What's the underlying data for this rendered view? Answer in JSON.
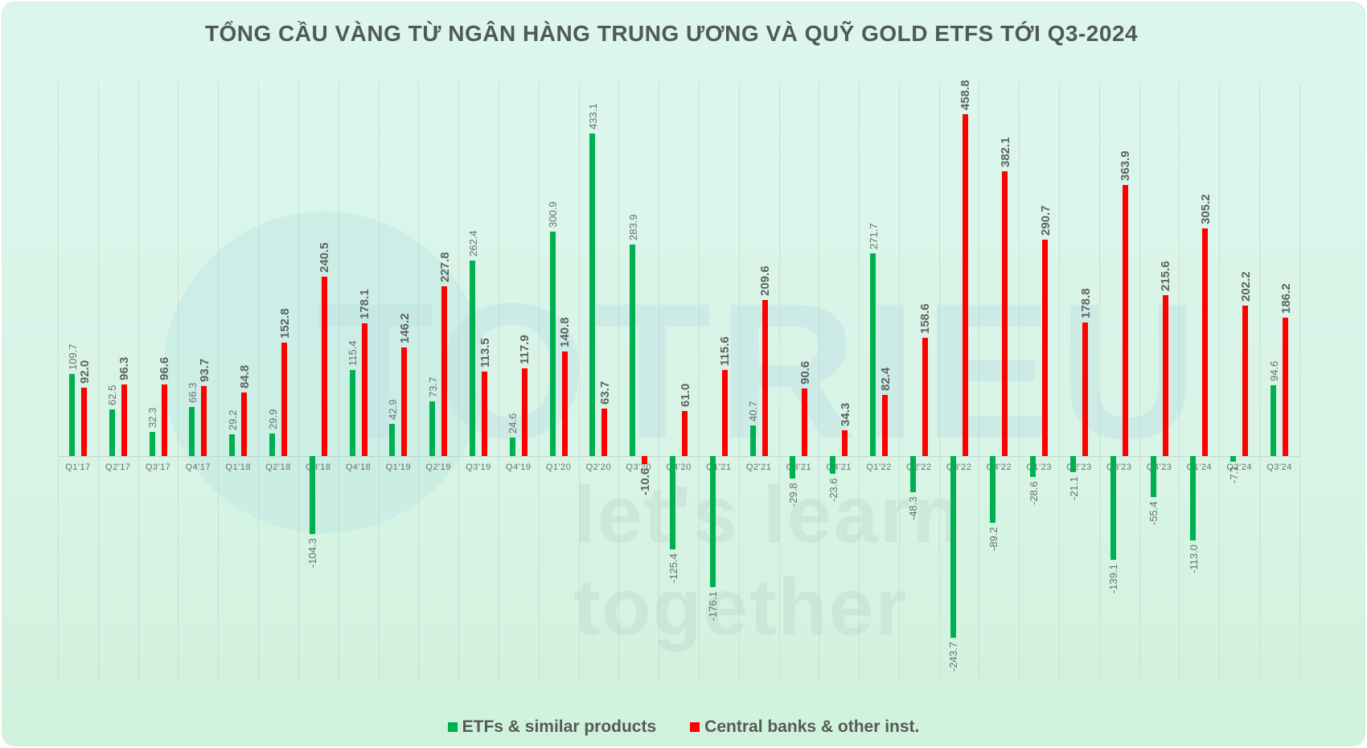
{
  "header": {
    "title": "TỔNG CẦU VÀNG TỪ NGÂN HÀNG TRUNG ƯƠNG VÀ QUỸ GOLD ETFS TỚI Q3-2024"
  },
  "watermark": {
    "text": "TOTRIEU",
    "subtext": "let's learn together"
  },
  "legend": {
    "items": [
      {
        "label": "ETFs & similar products",
        "color": "#00b050"
      },
      {
        "label": "Central banks & other inst.",
        "color": "#ff0000"
      }
    ]
  },
  "chart_data": {
    "type": "bar",
    "title": "TỔNG CẦU VÀNG TỪ NGÂN HÀNG TRUNG ƯƠNG VÀ QUỸ GOLD ETFS TỚI Q3-2024",
    "xlabel": "",
    "ylabel": "",
    "ylim": [
      -260,
      480
    ],
    "grid": "vertical",
    "legend_position": "bottom",
    "categories": [
      "Q1'17",
      "Q2'17",
      "Q3'17",
      "Q4'17",
      "Q1'18",
      "Q2'18",
      "Q3'18",
      "Q4'18",
      "Q1'19",
      "Q2'19",
      "Q3'19",
      "Q4'19",
      "Q1'20",
      "Q2'20",
      "Q3'20",
      "Q4'20",
      "Q1'21",
      "Q2'21",
      "Q3'21",
      "Q4'21",
      "Q1'22",
      "Q2'22",
      "Q3'22",
      "Q4'22",
      "Q1'23",
      "Q2'23",
      "Q3'23",
      "Q4'23",
      "Q1'24",
      "Q2'24",
      "Q3'24"
    ],
    "series": [
      {
        "name": "ETFs & similar products",
        "color": "#00b050",
        "values": [
          109.7,
          62.5,
          32.3,
          66.3,
          29.2,
          29.9,
          -104.3,
          115.4,
          42.9,
          73.7,
          262.4,
          24.6,
          300.9,
          433.1,
          283.9,
          -125.4,
          -176.1,
          40.7,
          -29.8,
          -23.6,
          271.7,
          -48.3,
          -243.7,
          -89.2,
          -28.6,
          -21.1,
          -139.1,
          -55.4,
          -113.0,
          -7.1,
          94.6
        ]
      },
      {
        "name": "Central banks & other inst.",
        "color": "#ff0000",
        "values": [
          92.0,
          96.3,
          96.6,
          93.7,
          84.8,
          152.8,
          240.5,
          178.1,
          146.2,
          227.8,
          113.5,
          117.9,
          140.8,
          63.7,
          -10.6,
          61.0,
          115.6,
          209.6,
          90.6,
          34.3,
          82.4,
          158.6,
          458.8,
          382.1,
          290.7,
          178.8,
          363.9,
          215.6,
          305.2,
          202.2,
          186.2
        ]
      }
    ]
  }
}
